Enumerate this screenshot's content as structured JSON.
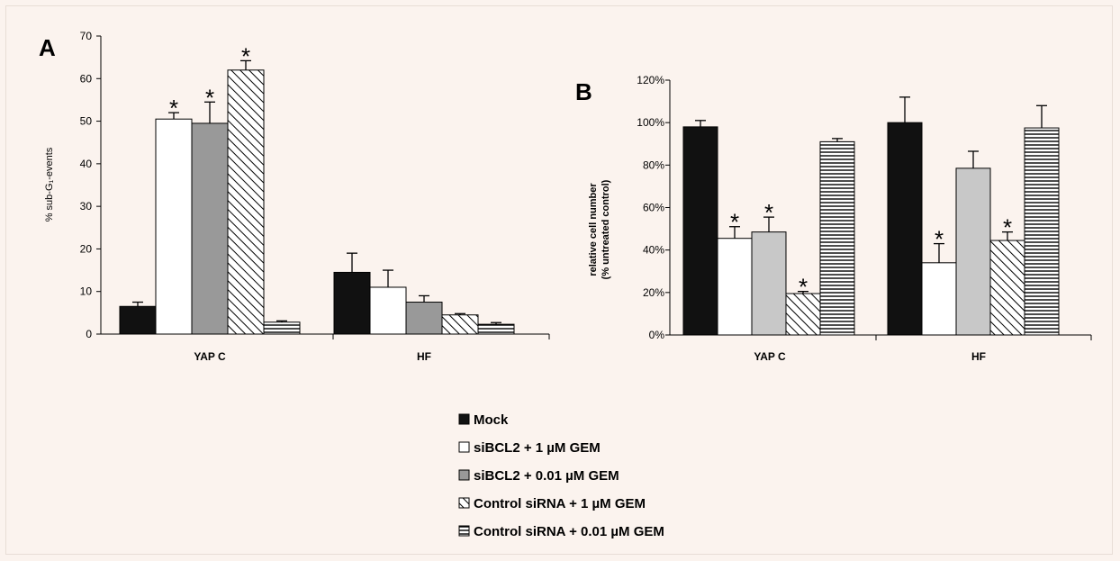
{
  "legend": [
    {
      "key": "mock",
      "label": "Mock"
    },
    {
      "key": "si1",
      "label": "siBCL2 + 1 µM GEM"
    },
    {
      "key": "si001",
      "label": "siBCL2 + 0.01 µM GEM"
    },
    {
      "key": "ct1",
      "label": "Control siRNA + 1 µM GEM"
    },
    {
      "key": "ct001",
      "label": "Control siRNA + 0.01 µM GEM"
    }
  ],
  "colors": {
    "mock": "#111111",
    "si1": "#ffffff",
    "si001_A": "#999999",
    "si001_B": "#c8c8c8",
    "ct1": "hatch-diagonal",
    "ct001": "hatch-horizontal"
  },
  "chart_data": [
    {
      "type": "bar",
      "panel_label": "A",
      "ylabel": "% sub-G₁-events",
      "ylim": [
        0,
        70
      ],
      "yticks": [
        "0",
        "10",
        "20",
        "30",
        "40",
        "50",
        "60",
        "70"
      ],
      "categories": [
        "YAP C",
        "HF"
      ],
      "series": [
        {
          "name": "Mock",
          "values": [
            6.5,
            14.5
          ],
          "errors": [
            1.0,
            4.5
          ]
        },
        {
          "name": "siBCL2 + 1 µM GEM",
          "values": [
            50.5,
            11.0
          ],
          "errors": [
            1.5,
            4.0
          ]
        },
        {
          "name": "siBCL2 + 0.01 µM GEM",
          "values": [
            49.5,
            7.5
          ],
          "errors": [
            5.0,
            1.5
          ]
        },
        {
          "name": "Control siRNA + 1 µM GEM",
          "values": [
            62.0,
            4.5
          ],
          "errors": [
            2.2,
            0.3
          ]
        },
        {
          "name": "Control siRNA + 0.01 µM GEM",
          "values": [
            2.8,
            2.3
          ],
          "errors": [
            0.3,
            0.4
          ]
        }
      ],
      "significance": [
        {
          "category": 0,
          "series": 1,
          "label": "*"
        },
        {
          "category": 0,
          "series": 2,
          "label": "*"
        },
        {
          "category": 0,
          "series": 3,
          "label": "*"
        }
      ]
    },
    {
      "type": "bar",
      "panel_label": "B",
      "ylabel": "relative cell number",
      "ylabel2": "(% untreated control)",
      "ylim": [
        0,
        120
      ],
      "yticks": [
        "0%",
        "20%",
        "40%",
        "60%",
        "80%",
        "100%",
        "120%"
      ],
      "categories": [
        "YAP C",
        "HF"
      ],
      "series": [
        {
          "name": "Mock",
          "values": [
            98,
            100
          ],
          "errors": [
            3,
            12
          ]
        },
        {
          "name": "siBCL2 + 1 µM GEM",
          "values": [
            45.5,
            34
          ],
          "errors": [
            5.5,
            9
          ]
        },
        {
          "name": "siBCL2 + 0.01 µM GEM",
          "values": [
            48.5,
            78.5
          ],
          "errors": [
            7,
            8
          ]
        },
        {
          "name": "Control siRNA + 1 µM GEM",
          "values": [
            19.5,
            44.5
          ],
          "errors": [
            1,
            4
          ]
        },
        {
          "name": "Control siRNA + 0.01 µM GEM",
          "values": [
            91,
            97.5
          ],
          "errors": [
            1.5,
            10.5
          ]
        }
      ],
      "significance": [
        {
          "category": 0,
          "series": 1,
          "label": "*"
        },
        {
          "category": 0,
          "series": 2,
          "label": "*"
        },
        {
          "category": 0,
          "series": 3,
          "label": "*"
        },
        {
          "category": 1,
          "series": 1,
          "label": "*"
        },
        {
          "category": 1,
          "series": 3,
          "label": "*"
        }
      ]
    }
  ]
}
